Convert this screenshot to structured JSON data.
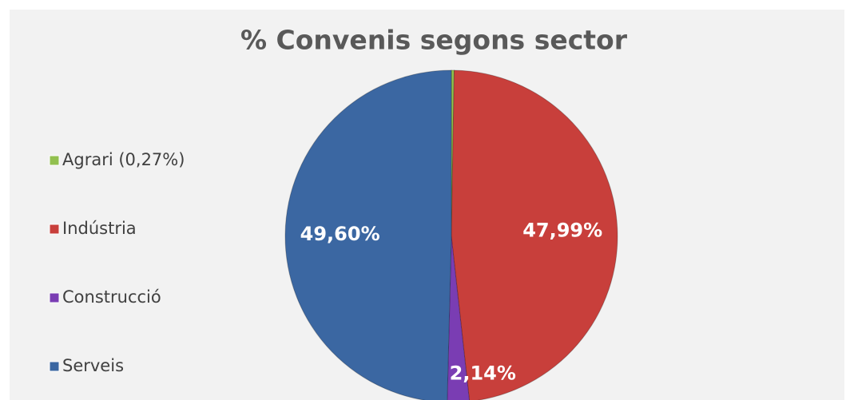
{
  "chart_data": {
    "type": "pie",
    "title": "% Convenis segons sector",
    "categories": [
      "Agrari (0,27%)",
      "Indústria",
      "Construcció",
      "Serveis"
    ],
    "values": [
      0.27,
      47.99,
      2.14,
      49.6
    ],
    "value_labels": [
      null,
      "47,99%",
      "2,14%",
      "49,60%"
    ],
    "colors": [
      "#92c04f",
      "#c83f3b",
      "#7a3db3",
      "#3b67a2"
    ],
    "legend": "left"
  }
}
